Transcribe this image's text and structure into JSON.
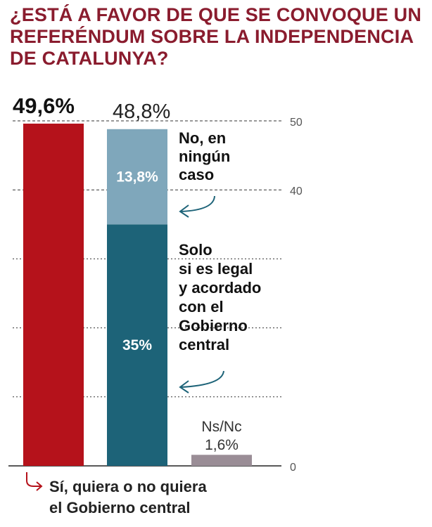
{
  "title_lines": [
    "¿ESTÁ A FAVOR DE QUE SE CONVOQUE UN",
    "REFERÉNDUM SOBRE LA INDEPENDENCIA",
    "DE CATALUNYA?"
  ],
  "chart_data": {
    "type": "bar",
    "title": "¿ESTÁ A FAVOR DE QUE SE CONVOQUE UN REFERÉNDUM SOBRE LA INDEPENDENCIA DE CATALUNYA?",
    "ylim": [
      0,
      50
    ],
    "y_ticks": [
      0,
      40,
      50
    ],
    "grid_values": [
      10,
      20,
      30,
      40,
      50
    ],
    "bars": [
      {
        "key": "si",
        "total_label": "49,6%",
        "total": 49.6,
        "segments": [
          {
            "value": 49.6,
            "color": "#b5121b",
            "label": ""
          }
        ],
        "caption_lines": [
          "Sí, quiera o no quiera",
          "el Gobierno central"
        ],
        "caption_color": "#222222"
      },
      {
        "key": "no",
        "total_label": "48,8%",
        "total": 48.8,
        "segments": [
          {
            "value": 35,
            "color": "#1d6378",
            "label": "35%",
            "annotation_lines": [
              "Solo",
              "si es legal",
              "y acordado",
              "con el",
              "Gobierno",
              "central"
            ]
          },
          {
            "value": 13.8,
            "color": "#7fa7bb",
            "label": "13,8%",
            "annotation_lines": [
              "No, en",
              "ningún",
              "caso"
            ]
          }
        ]
      },
      {
        "key": "nsnc",
        "total": 1.6,
        "segments": [
          {
            "value": 1.6,
            "color": "#9a8d96",
            "label": ""
          }
        ],
        "label_lines": [
          "Ns/Nc",
          "1,6%"
        ]
      }
    ],
    "colors": {
      "arrow_red": "#b5121b",
      "arrow_teal": "#1d6378",
      "grid": "#333333",
      "axis_text": "#555555"
    }
  }
}
